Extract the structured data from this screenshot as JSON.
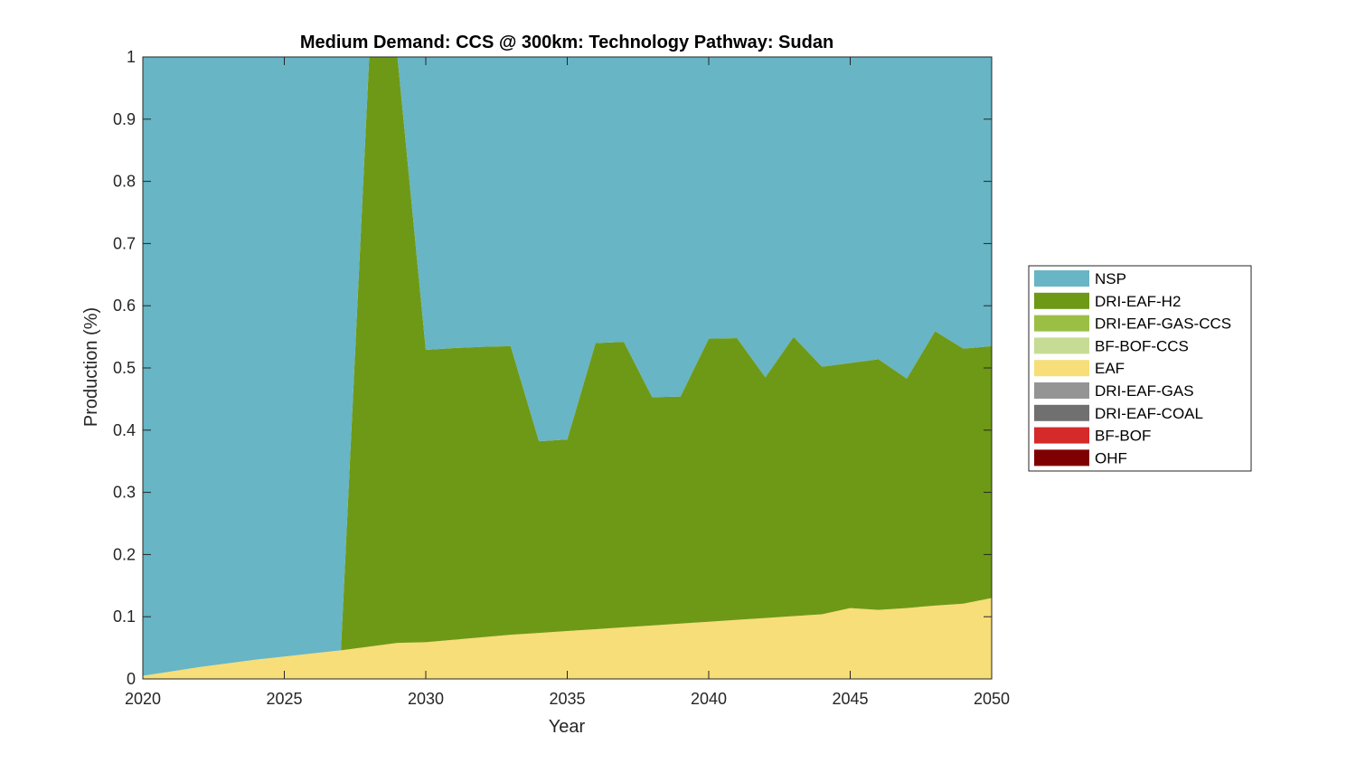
{
  "chart_data": {
    "type": "area",
    "stacked": true,
    "title": "Medium Demand: CCS @ 300km: Technology Pathway: Sudan",
    "xlabel": "Year",
    "ylabel": "Production (%)",
    "xlim": [
      2020,
      2050
    ],
    "ylim": [
      0,
      1
    ],
    "xticks": [
      "2020",
      "2025",
      "2030",
      "2035",
      "2040",
      "2045",
      "2050"
    ],
    "yticks": [
      "0",
      "0.1",
      "0.2",
      "0.3",
      "0.4",
      "0.5",
      "0.6",
      "0.7",
      "0.8",
      "0.9",
      "1"
    ],
    "x": [
      2020,
      2021,
      2022,
      2023,
      2024,
      2025,
      2026,
      2027,
      2028,
      2029,
      2030,
      2031,
      2032,
      2033,
      2034,
      2035,
      2036,
      2037,
      2038,
      2039,
      2040,
      2041,
      2042,
      2043,
      2044,
      2045,
      2046,
      2047,
      2048,
      2049,
      2050
    ],
    "legend_position": "right",
    "series": [
      {
        "name": "OHF",
        "color": "#7f0000",
        "values": [
          0,
          0,
          0,
          0,
          0,
          0,
          0,
          0,
          0,
          0,
          0,
          0,
          0,
          0,
          0,
          0,
          0,
          0,
          0,
          0,
          0,
          0,
          0,
          0,
          0,
          0,
          0,
          0,
          0,
          0,
          0
        ]
      },
      {
        "name": "BF-BOF",
        "color": "#d42a2a",
        "values": [
          0,
          0,
          0,
          0,
          0,
          0,
          0,
          0,
          0,
          0,
          0,
          0,
          0,
          0,
          0,
          0,
          0,
          0,
          0,
          0,
          0,
          0,
          0,
          0,
          0,
          0,
          0,
          0,
          0,
          0,
          0
        ]
      },
      {
        "name": "DRI-EAF-COAL",
        "color": "#707070",
        "values": [
          0,
          0,
          0,
          0,
          0,
          0,
          0,
          0,
          0,
          0,
          0,
          0,
          0,
          0,
          0,
          0,
          0,
          0,
          0,
          0,
          0,
          0,
          0,
          0,
          0,
          0,
          0,
          0,
          0,
          0,
          0
        ]
      },
      {
        "name": "DRI-EAF-GAS",
        "color": "#949494",
        "values": [
          0,
          0,
          0,
          0,
          0,
          0,
          0,
          0,
          0,
          0,
          0,
          0,
          0,
          0,
          0,
          0,
          0,
          0,
          0,
          0,
          0,
          0,
          0,
          0,
          0,
          0,
          0,
          0,
          0,
          0,
          0
        ]
      },
      {
        "name": "EAF",
        "color": "#f7de78",
        "values": [
          0.005,
          0.012,
          0.019,
          0.025,
          0.031,
          0.036,
          0.041,
          0.046,
          0.052,
          0.058,
          0.059,
          0.063,
          0.067,
          0.071,
          0.074,
          0.077,
          0.08,
          0.083,
          0.086,
          0.089,
          0.092,
          0.095,
          0.098,
          0.101,
          0.104,
          0.114,
          0.111,
          0.114,
          0.118,
          0.121,
          0.13
        ]
      },
      {
        "name": "BF-BOF-CCS",
        "color": "#c6dc94",
        "values": [
          0,
          0,
          0,
          0,
          0,
          0,
          0,
          0,
          0,
          0,
          0,
          0,
          0,
          0,
          0,
          0,
          0,
          0,
          0,
          0,
          0,
          0,
          0,
          0,
          0,
          0,
          0,
          0,
          0,
          0,
          0
        ]
      },
      {
        "name": "DRI-EAF-GAS-CCS",
        "color": "#9bbf45",
        "values": [
          0,
          0,
          0,
          0,
          0,
          0,
          0,
          0,
          0,
          0,
          0,
          0,
          0,
          0,
          0,
          0,
          0,
          0,
          0,
          0,
          0,
          0,
          0,
          0,
          0,
          0,
          0,
          0,
          0,
          0,
          0
        ]
      },
      {
        "name": "DRI-EAF-H2",
        "color": "#6e9916",
        "values": [
          0,
          0,
          0,
          0,
          0,
          0,
          0,
          0,
          0.948,
          0.942,
          0.47,
          0.469,
          0.467,
          0.464,
          0.308,
          0.308,
          0.46,
          0.459,
          0.367,
          0.365,
          0.455,
          0.453,
          0.387,
          0.449,
          0.398,
          0.394,
          0.403,
          0.369,
          0.441,
          0.41,
          0.405
        ]
      },
      {
        "name": "NSP",
        "color": "#67b5c5",
        "values": [
          0.995,
          0.988,
          0.981,
          0.975,
          0.969,
          0.964,
          0.959,
          0.954,
          0,
          0,
          0.471,
          0.468,
          0.466,
          0.465,
          0.618,
          0.615,
          0.46,
          0.458,
          0.547,
          0.546,
          0.453,
          0.452,
          0.515,
          0.45,
          0.498,
          0.492,
          0.486,
          0.517,
          0.441,
          0.469,
          0.465
        ]
      }
    ],
    "legend_order": [
      "NSP",
      "DRI-EAF-H2",
      "DRI-EAF-GAS-CCS",
      "BF-BOF-CCS",
      "EAF",
      "DRI-EAF-GAS",
      "DRI-EAF-COAL",
      "BF-BOF",
      "OHF"
    ]
  }
}
